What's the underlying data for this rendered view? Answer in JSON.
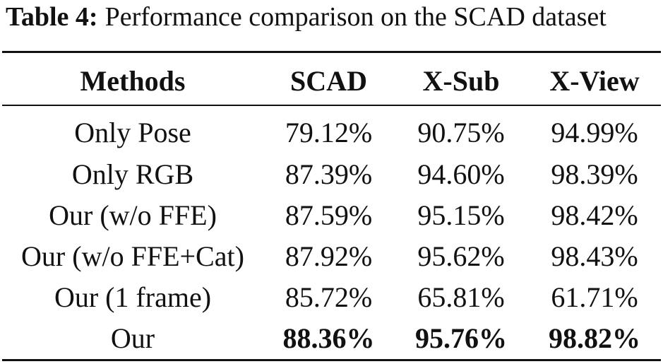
{
  "caption": {
    "label": "Table 4:",
    "text": "Performance comparison on the SCAD dataset"
  },
  "table": {
    "headers": [
      "Methods",
      "SCAD",
      "X-Sub",
      "X-View"
    ],
    "rows": [
      {
        "method": "Only Pose",
        "scad": "79.12%",
        "xsub": "90.75%",
        "xview": "94.99%"
      },
      {
        "method": "Only RGB",
        "scad": "87.39%",
        "xsub": "94.60%",
        "xview": "98.39%"
      },
      {
        "method": "Our (w/o FFE)",
        "scad": "87.59%",
        "xsub": "95.15%",
        "xview": "98.42%"
      },
      {
        "method": "Our (w/o FFE+Cat)",
        "scad": "87.92%",
        "xsub": "95.62%",
        "xview": "98.43%"
      },
      {
        "method": "Our (1 frame)",
        "scad": "85.72%",
        "xsub": "65.81%",
        "xview": "61.71%"
      },
      {
        "method": "Our",
        "scad": "88.36%",
        "xsub": "95.76%",
        "xview": "98.82%"
      }
    ]
  },
  "chart_data": {
    "type": "table",
    "title": "Performance comparison on the SCAD dataset",
    "columns": [
      "Methods",
      "SCAD",
      "X-Sub",
      "X-View"
    ],
    "rows": [
      [
        "Only Pose",
        79.12,
        90.75,
        94.99
      ],
      [
        "Only RGB",
        87.39,
        94.6,
        98.39
      ],
      [
        "Our (w/o FFE)",
        87.59,
        95.15,
        98.42
      ],
      [
        "Our (w/o FFE+Cat)",
        87.92,
        95.62,
        98.43
      ],
      [
        "Our (1 frame)",
        85.72,
        65.81,
        61.71
      ],
      [
        "Our",
        88.36,
        95.76,
        98.82
      ]
    ],
    "unit": "%",
    "bold_row": "Our"
  }
}
